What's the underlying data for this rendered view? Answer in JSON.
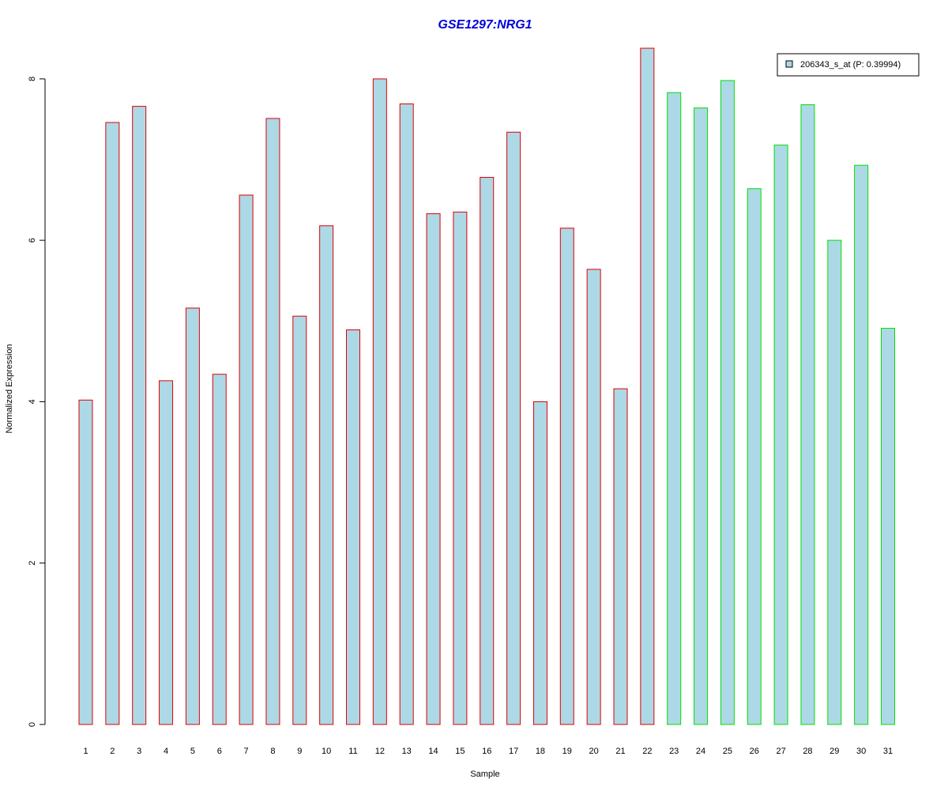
{
  "chart_data": {
    "type": "bar",
    "title": "GSE1297:NRG1",
    "xlabel": "Sample",
    "ylabel": "Normalized Expression",
    "ylim": [
      0,
      8.4
    ],
    "y_ticks": [
      0,
      2,
      4,
      6,
      8
    ],
    "grid": false,
    "legend_position": "top-right",
    "categories": [
      "1",
      "2",
      "3",
      "4",
      "5",
      "6",
      "7",
      "8",
      "9",
      "10",
      "11",
      "12",
      "13",
      "14",
      "15",
      "16",
      "17",
      "18",
      "19",
      "20",
      "21",
      "22",
      "23",
      "24",
      "25",
      "26",
      "27",
      "28",
      "29",
      "30",
      "31"
    ],
    "series": [
      {
        "name": "206343_s_at (P: 0.39994)",
        "values": [
          4.02,
          7.46,
          7.66,
          4.26,
          5.16,
          4.34,
          6.56,
          7.51,
          5.06,
          6.18,
          4.89,
          8.0,
          7.69,
          6.33,
          6.35,
          6.78,
          7.34,
          4.0,
          6.15,
          5.64,
          4.16,
          8.38,
          7.83,
          7.64,
          7.98,
          6.64,
          7.18,
          7.68,
          6.0,
          6.93,
          4.91
        ]
      }
    ],
    "groups": [
      {
        "from": 1,
        "to": 22,
        "border_color": "#e00000"
      },
      {
        "from": 23,
        "to": 31,
        "border_color": "#00e000"
      }
    ],
    "colors": {
      "title": "#0000dd",
      "bar_fill": "#add8e6",
      "axis": "#000000"
    }
  }
}
